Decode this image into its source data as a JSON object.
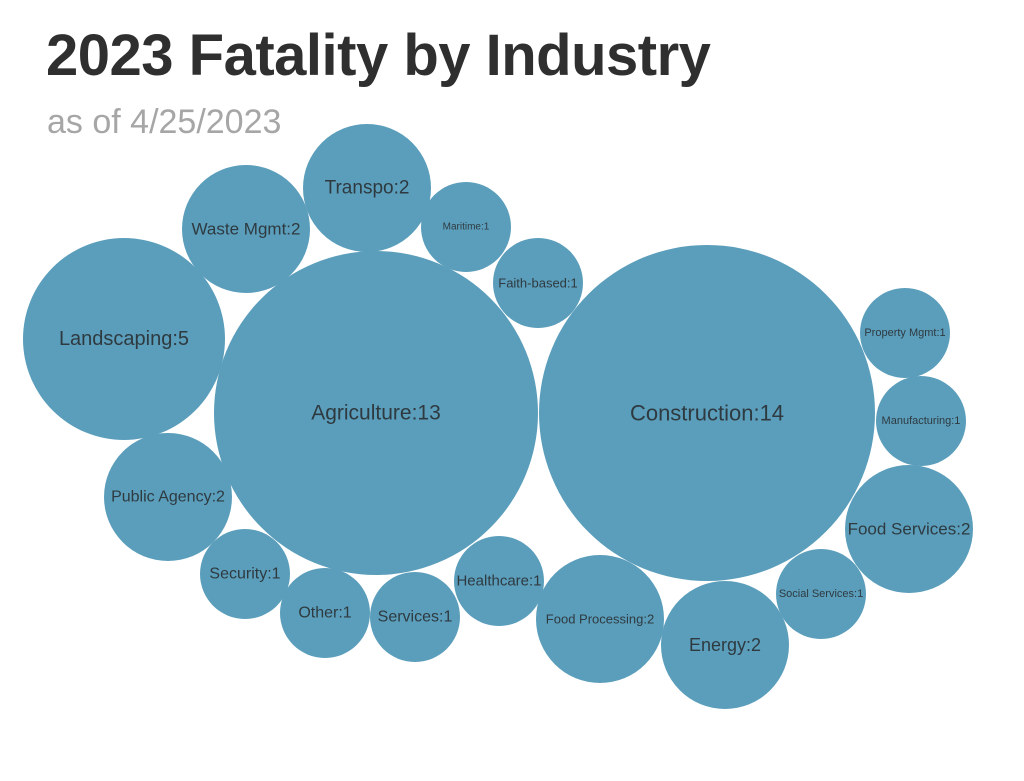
{
  "title": "2023 Fatality by Industry",
  "subtitle": "as of 4/25/2023",
  "colors": {
    "bubble": "#5b9ebb",
    "label": "#2e3a40"
  },
  "chart_data": {
    "type": "bubble",
    "title": "2023 Fatality by Industry",
    "subtitle": "as of 4/25/2023",
    "bubbles": [
      {
        "label": "Construction:14",
        "category": "Construction",
        "value": 14
      },
      {
        "label": "Agriculture:13",
        "category": "Agriculture",
        "value": 13
      },
      {
        "label": "Landscaping:5",
        "category": "Landscaping",
        "value": 5
      },
      {
        "label": "Transpo:2",
        "category": "Transpo",
        "value": 2
      },
      {
        "label": "Waste Mgmt:2",
        "category": "Waste Mgmt",
        "value": 2
      },
      {
        "label": "Public Agency:2",
        "category": "Public Agency",
        "value": 2
      },
      {
        "label": "Food Services:2",
        "category": "Food Services",
        "value": 2
      },
      {
        "label": "Food Processing:2",
        "category": "Food Processing",
        "value": 2
      },
      {
        "label": "Energy:2",
        "category": "Energy",
        "value": 2
      },
      {
        "label": "Maritime:1",
        "category": "Maritime",
        "value": 1
      },
      {
        "label": "Faith-based:1",
        "category": "Faith-based",
        "value": 1
      },
      {
        "label": "Property Mgmt:1",
        "category": "Property Mgmt",
        "value": 1
      },
      {
        "label": "Manufacturing:1",
        "category": "Manufacturing",
        "value": 1
      },
      {
        "label": "Social Services:1",
        "category": "Social Services",
        "value": 1
      },
      {
        "label": "Healthcare:1",
        "category": "Healthcare",
        "value": 1
      },
      {
        "label": "Services:1",
        "category": "Services",
        "value": 1
      },
      {
        "label": "Other:1",
        "category": "Other",
        "value": 1
      },
      {
        "label": "Security:1",
        "category": "Security",
        "value": 1
      }
    ]
  }
}
